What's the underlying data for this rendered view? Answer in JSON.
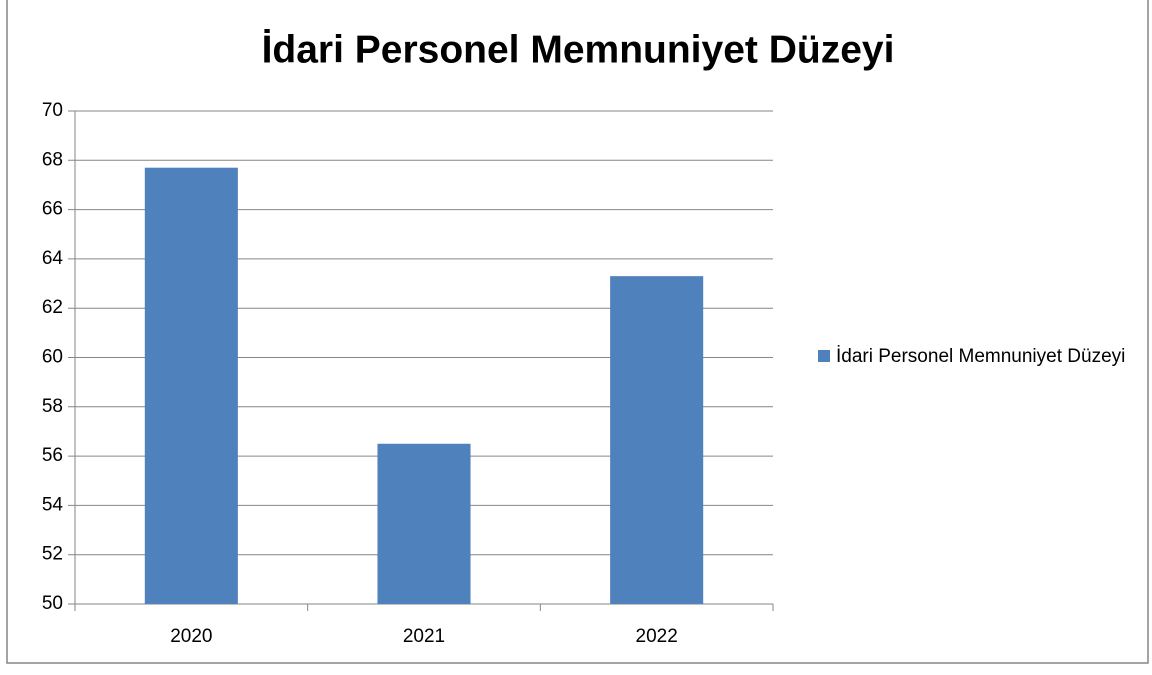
{
  "chart_data": {
    "type": "bar",
    "title": "İdari Personel Memnuniyet Düzeyi",
    "categories": [
      "2020",
      "2021",
      "2022"
    ],
    "series": [
      {
        "name": "İdari Personel Memnuniyet Düzeyi",
        "color": "#4f81bd",
        "values": [
          67.7,
          56.5,
          63.3
        ]
      }
    ],
    "ylim": [
      50,
      70
    ],
    "yticks": [
      50,
      52,
      54,
      56,
      58,
      60,
      62,
      64,
      66,
      68,
      70
    ],
    "grid": true,
    "legend": "right"
  }
}
